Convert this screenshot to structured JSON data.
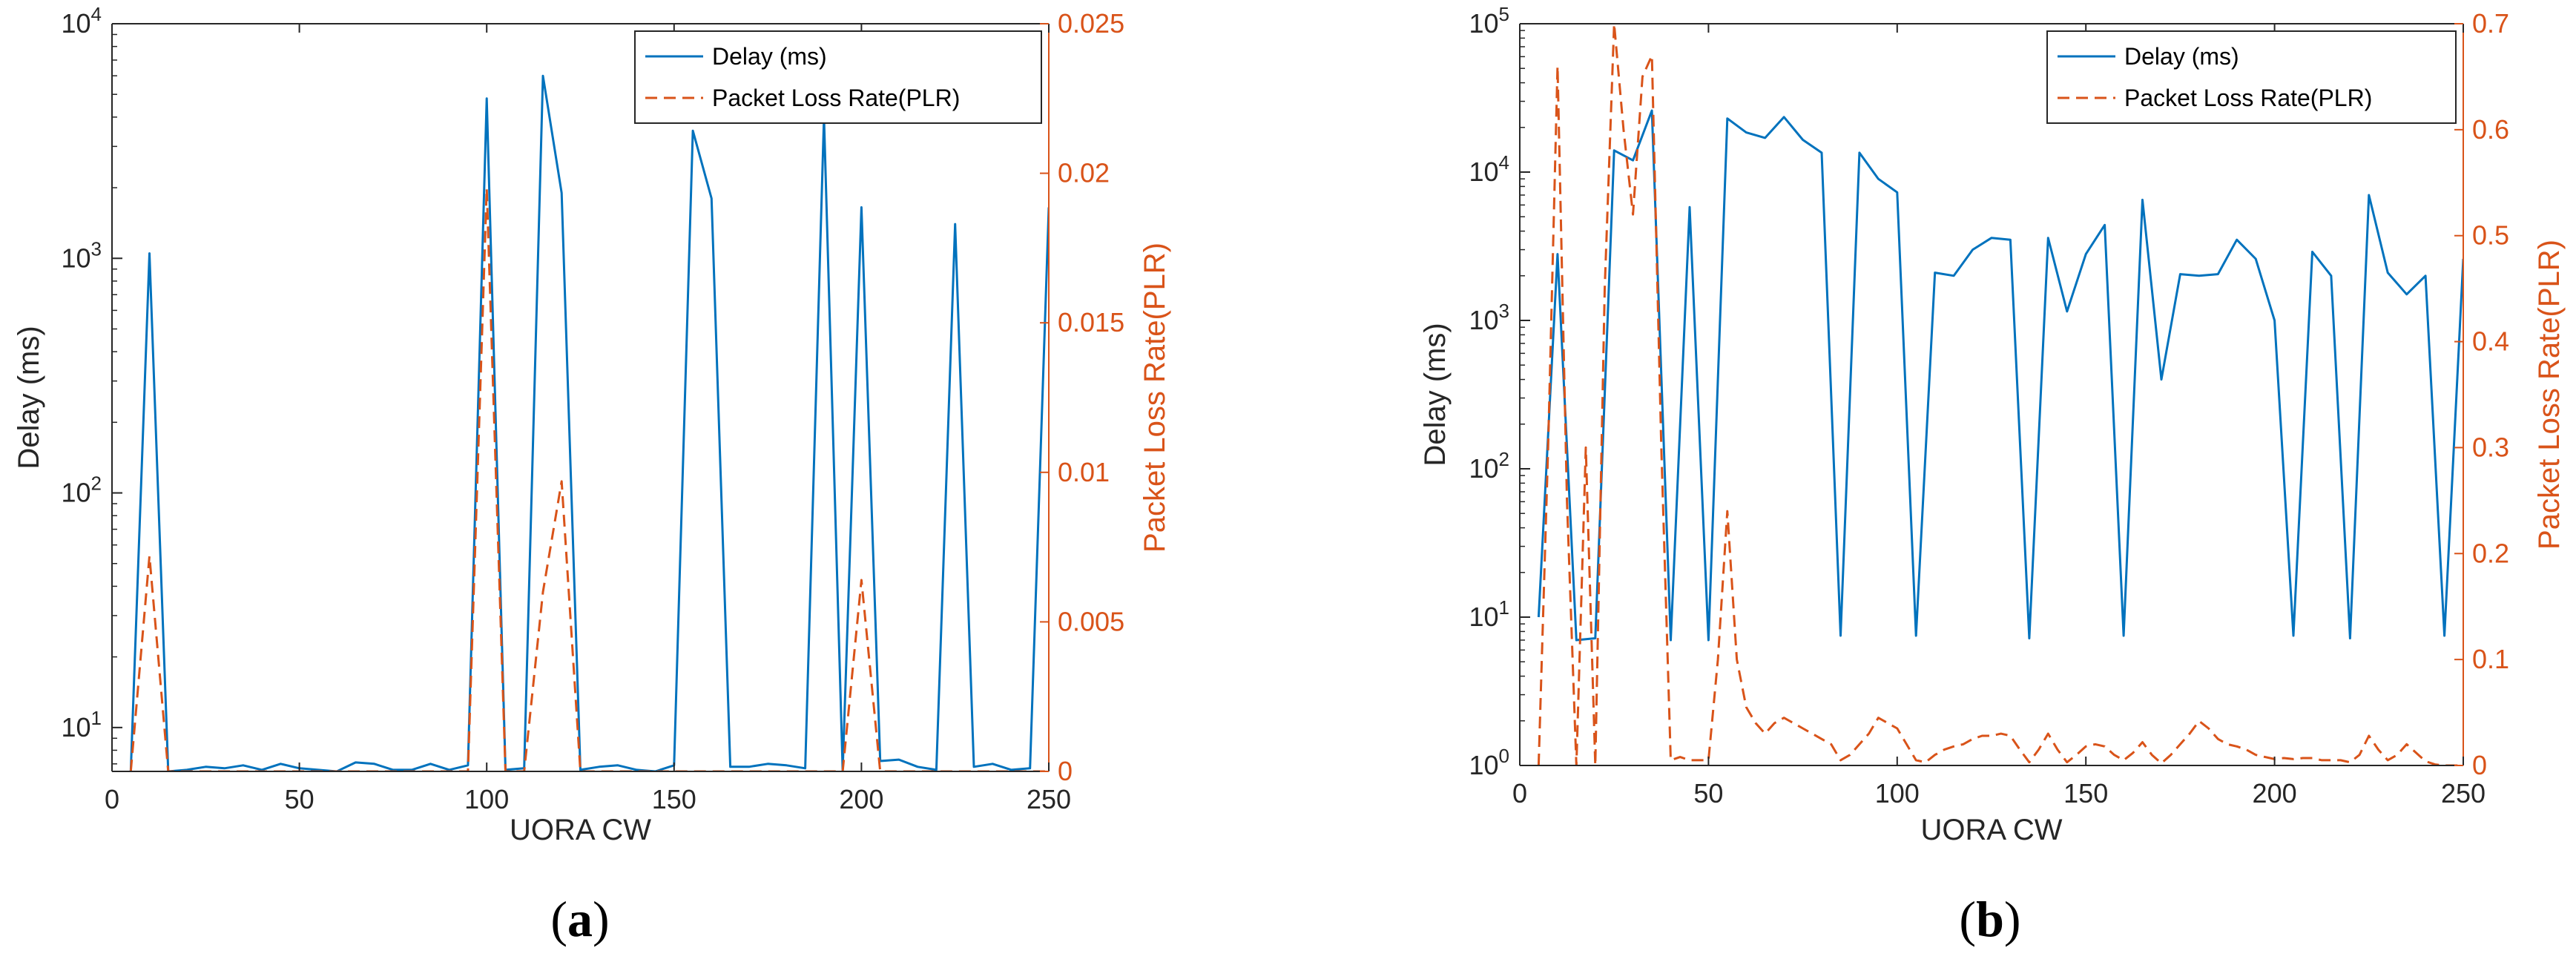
{
  "chart_data": [
    {
      "id": "a",
      "type": "line",
      "caption_letter": "a",
      "xlabel": "UORA CW",
      "ylabel_left": "Delay (ms)",
      "ylabel_right": "Packet Loss Rate(PLR)",
      "xlim": [
        0,
        250
      ],
      "xticks": [
        0,
        50,
        100,
        150,
        200,
        250
      ],
      "yscale_left": "log",
      "ylim_left": [
        6.5,
        10000
      ],
      "yticks_left": [
        {
          "v": 10,
          "exp": "1"
        },
        {
          "v": 100,
          "exp": "2"
        },
        {
          "v": 1000,
          "exp": "3"
        },
        {
          "v": 10000,
          "exp": "4"
        }
      ],
      "ylim_right": [
        0,
        0.025
      ],
      "yticks_right": [
        {
          "v": 0,
          "label": "0"
        },
        {
          "v": 0.005,
          "label": "0.005"
        },
        {
          "v": 0.01,
          "label": "0.01"
        },
        {
          "v": 0.015,
          "label": "0.015"
        },
        {
          "v": 0.02,
          "label": "0.02"
        },
        {
          "v": 0.025,
          "label": "0.025"
        }
      ],
      "legend": [
        "Delay (ms)",
        "Packet Loss Rate(PLR)"
      ],
      "legend_position": "top-right",
      "series": [
        {
          "name": "Delay (ms)",
          "axis": "left",
          "color": "#0072BD",
          "style": "solid",
          "x": [
            5,
            10,
            15,
            20,
            25,
            30,
            35,
            40,
            45,
            50,
            55,
            60,
            65,
            70,
            75,
            80,
            85,
            90,
            95,
            100,
            105,
            110,
            115,
            120,
            125,
            130,
            135,
            140,
            145,
            150,
            155,
            160,
            165,
            170,
            175,
            180,
            185,
            190,
            195,
            200,
            205,
            210,
            215,
            220,
            225,
            230,
            235,
            240,
            245,
            250
          ],
          "values": [
            6.5,
            1050,
            6.5,
            6.6,
            6.8,
            6.7,
            6.9,
            6.6,
            7.0,
            6.7,
            6.6,
            6.5,
            7.1,
            7.0,
            6.6,
            6.6,
            7.0,
            6.6,
            6.9,
            4800,
            6.6,
            6.7,
            6000,
            1900,
            6.6,
            6.8,
            6.9,
            6.6,
            6.5,
            6.9,
            3500,
            1800,
            6.8,
            6.8,
            7.0,
            6.9,
            6.7,
            4000,
            6.6,
            1650,
            7.2,
            7.3,
            6.8,
            6.6,
            1400,
            6.8,
            7.0,
            6.6,
            6.7,
            1650
          ]
        },
        {
          "name": "Packet Loss Rate(PLR)",
          "axis": "right",
          "color": "#D95319",
          "style": "dashed",
          "x": [
            5,
            10,
            15,
            20,
            25,
            30,
            35,
            40,
            45,
            50,
            55,
            60,
            65,
            70,
            75,
            80,
            85,
            90,
            95,
            100,
            105,
            110,
            115,
            120,
            125,
            130,
            135,
            140,
            145,
            150,
            155,
            160,
            165,
            170,
            175,
            180,
            185,
            190,
            195,
            200,
            205,
            210,
            215,
            220,
            225,
            230,
            235,
            240,
            245,
            250
          ],
          "values": [
            0,
            0.0072,
            0,
            0,
            0,
            0,
            0,
            0,
            0,
            0,
            0,
            0,
            0,
            0,
            0,
            0,
            0,
            0,
            0,
            0.0195,
            0,
            0,
            0.006,
            0.0097,
            0,
            0,
            0,
            0,
            0,
            0,
            0,
            0,
            0,
            0,
            0,
            0,
            0,
            0,
            0,
            0.0064,
            0,
            0,
            0,
            0,
            0,
            0,
            0,
            0,
            0,
            0
          ]
        }
      ]
    },
    {
      "id": "b",
      "type": "line",
      "caption_letter": "b",
      "xlabel": "UORA CW",
      "ylabel_left": "Delay (ms)",
      "ylabel_right": "Packet Loss Rate(PLR)",
      "xlim": [
        0,
        250
      ],
      "xticks": [
        0,
        50,
        100,
        150,
        200,
        250
      ],
      "yscale_left": "log",
      "ylim_left": [
        1,
        100000
      ],
      "yticks_left": [
        {
          "v": 1,
          "exp": "0"
        },
        {
          "v": 10,
          "exp": "1"
        },
        {
          "v": 100,
          "exp": "2"
        },
        {
          "v": 1000,
          "exp": "3"
        },
        {
          "v": 10000,
          "exp": "4"
        },
        {
          "v": 100000,
          "exp": "5"
        }
      ],
      "ylim_right": [
        0,
        0.7
      ],
      "yticks_right": [
        {
          "v": 0,
          "label": "0"
        },
        {
          "v": 0.1,
          "label": "0.1"
        },
        {
          "v": 0.2,
          "label": "0.2"
        },
        {
          "v": 0.3,
          "label": "0.3"
        },
        {
          "v": 0.4,
          "label": "0.4"
        },
        {
          "v": 0.5,
          "label": "0.5"
        },
        {
          "v": 0.6,
          "label": "0.6"
        },
        {
          "v": 0.7,
          "label": "0.7"
        }
      ],
      "legend": [
        "Delay (ms)",
        "Packet Loss Rate(PLR)"
      ],
      "legend_position": "top-right",
      "series": [
        {
          "name": "Delay (ms)",
          "axis": "left",
          "color": "#0072BD",
          "style": "solid",
          "x": [
            5,
            10,
            15,
            20,
            25,
            30,
            35,
            40,
            45,
            50,
            55,
            60,
            65,
            70,
            75,
            80,
            85,
            90,
            95,
            100,
            105,
            110,
            115,
            120,
            125,
            130,
            135,
            140,
            145,
            150,
            155,
            160,
            165,
            170,
            175,
            180,
            185,
            190,
            195,
            200,
            205,
            210,
            215,
            220,
            225,
            230,
            235,
            240,
            245,
            250
          ],
          "values": [
            10,
            2800,
            7,
            7.2,
            14000,
            12000,
            26000,
            7,
            5800,
            7,
            23000,
            18500,
            17000,
            23500,
            16500,
            13500,
            7.5,
            13500,
            9000,
            7300,
            7.5,
            2100,
            2000,
            3000,
            3600,
            3500,
            7.2,
            3600,
            1150,
            2800,
            4400,
            7.5,
            6500,
            400,
            2050,
            2000,
            2050,
            3500,
            2600,
            1000,
            7.5,
            2900,
            2000,
            7.2,
            7000,
            2100,
            1500,
            2000,
            7.5,
            2600
          ]
        },
        {
          "name": "Packet Loss Rate(PLR)",
          "axis": "right",
          "color": "#D95319",
          "style": "dashed",
          "x": [
            5,
            7.5,
            10,
            12.5,
            15,
            17.5,
            20,
            22.5,
            25,
            27.5,
            30,
            32.5,
            35,
            37.5,
            40,
            42.5,
            45,
            47.5,
            50,
            52.5,
            55,
            57.5,
            60,
            62.5,
            65,
            67.5,
            70,
            72.5,
            75,
            77.5,
            80,
            82.5,
            85,
            87.5,
            90,
            92.5,
            95,
            97.5,
            100,
            102.5,
            105,
            107.5,
            110,
            112.5,
            115,
            117.5,
            120,
            122.5,
            125,
            127.5,
            130,
            132.5,
            135,
            137.5,
            140,
            142.5,
            145,
            147.5,
            150,
            152.5,
            155,
            157.5,
            160,
            162.5,
            165,
            167.5,
            170,
            172.5,
            175,
            177.5,
            180,
            182.5,
            185,
            187.5,
            190,
            192.5,
            195,
            197.5,
            200,
            202.5,
            205,
            207.5,
            210,
            212.5,
            215,
            217.5,
            220,
            222.5,
            225,
            227.5,
            230,
            232.5,
            235,
            237.5,
            240,
            242.5,
            245,
            247.5,
            250
          ],
          "values": [
            0,
            0.3,
            0.66,
            0.25,
            0,
            0.3,
            0,
            0.45,
            0.7,
            0.6,
            0.52,
            0.65,
            0.67,
            0.3,
            0.005,
            0.008,
            0.005,
            0.005,
            0.005,
            0.1,
            0.24,
            0.1,
            0.055,
            0.04,
            0.03,
            0.04,
            0.045,
            0.04,
            0.035,
            0.03,
            0.025,
            0.02,
            0.005,
            0.01,
            0.02,
            0.03,
            0.045,
            0.04,
            0.035,
            0.02,
            0.005,
            0.003,
            0.01,
            0.015,
            0.018,
            0.02,
            0.025,
            0.028,
            0.028,
            0.03,
            0.028,
            0.015,
            0.003,
            0.015,
            0.03,
            0.015,
            0.003,
            0.01,
            0.018,
            0.02,
            0.018,
            0.01,
            0.005,
            0.012,
            0.022,
            0.01,
            0.002,
            0.01,
            0.02,
            0.03,
            0.042,
            0.035,
            0.025,
            0.02,
            0.018,
            0.015,
            0.01,
            0.008,
            0.006,
            0.007,
            0.006,
            0.007,
            0.007,
            0.005,
            0.005,
            0.005,
            0.003,
            0.01,
            0.028,
            0.015,
            0.005,
            0.01,
            0.02,
            0.012,
            0.004,
            0.001,
            0,
            0,
            0
          ]
        }
      ]
    }
  ]
}
